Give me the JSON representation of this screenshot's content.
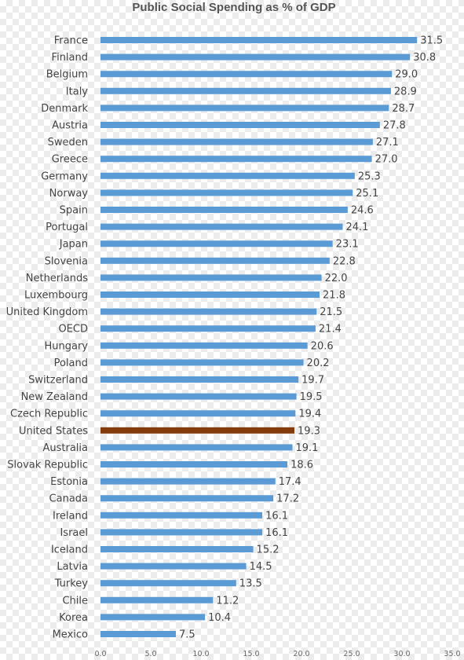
{
  "chart_data": {
    "type": "bar",
    "orientation": "horizontal",
    "title": "Public Social Spending as % of GDP",
    "xlabel": "",
    "ylabel": "",
    "xlim": [
      0,
      35
    ],
    "x_ticks": [
      "0.0",
      "5.0",
      "10.0",
      "15.0",
      "20.0",
      "25.0",
      "30.0",
      "35.0"
    ],
    "grid": false,
    "legend": "none",
    "categories": [
      "France",
      "Finland",
      "Belgium",
      "Italy",
      "Denmark",
      "Austria",
      "Sweden",
      "Greece",
      "Germany",
      "Norway",
      "Spain",
      "Portugal",
      "Japan",
      "Slovenia",
      "Netherlands",
      "Luxembourg",
      "United Kingdom",
      "OECD",
      "Hungary",
      "Poland",
      "Switzerland",
      "New Zealand",
      "Czech Republic",
      "United States",
      "Australia",
      "Slovak Republic",
      "Estonia",
      "Canada",
      "Ireland",
      "Israel",
      "Iceland",
      "Latvia",
      "Turkey",
      "Chile",
      "Korea",
      "Mexico"
    ],
    "values": [
      31.5,
      30.8,
      29.0,
      28.9,
      28.7,
      27.8,
      27.1,
      27.0,
      25.3,
      25.1,
      24.6,
      24.1,
      23.1,
      22.8,
      22.0,
      21.8,
      21.5,
      21.4,
      20.6,
      20.2,
      19.7,
      19.5,
      19.4,
      19.3,
      19.1,
      18.6,
      17.4,
      17.2,
      16.1,
      16.1,
      15.2,
      14.5,
      13.5,
      11.2,
      10.4,
      7.5
    ],
    "value_labels": [
      "31.5",
      "30.8",
      "29.0",
      "28.9",
      "28.7",
      "27.8",
      "27.1",
      "27.0",
      "25.3",
      "25.1",
      "24.6",
      "24.1",
      "23.1",
      "22.8",
      "22.0",
      "21.8",
      "21.5",
      "21.4",
      "20.6",
      "20.2",
      "19.7",
      "19.5",
      "19.4",
      "19.3",
      "19.1",
      "18.6",
      "17.4",
      "17.2",
      "16.1",
      "16.1",
      "15.2",
      "14.5",
      "13.5",
      "11.2",
      "10.4",
      "7.5"
    ],
    "highlight": "United States",
    "colors": {
      "bar": "#5b9bd5",
      "highlight": "#843c0c"
    }
  }
}
